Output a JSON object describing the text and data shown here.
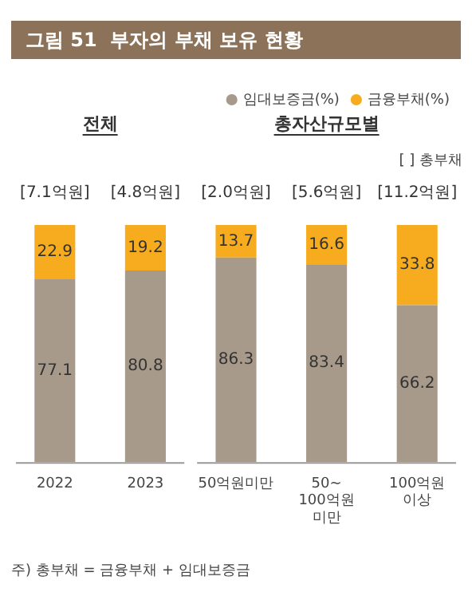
{
  "chart_data": {
    "type": "bar",
    "title": "그림 51  부자의 부채 보유 현황",
    "stacked": true,
    "data_labels": true,
    "legend": "top right",
    "grid": false,
    "categories": [
      "2022",
      "2023",
      "50억원미만",
      "50~100억원 미만",
      "100억원 이상"
    ],
    "series": [
      {
        "name": "임대보증금(%)",
        "color": "#a89a8a",
        "values": [
          77.1,
          80.8,
          86.3,
          83.4,
          66.2
        ]
      },
      {
        "name": "금융부채(%)",
        "color": "#f6ac1e",
        "values": [
          22.9,
          19.2,
          13.7,
          16.6,
          33.8
        ]
      }
    ],
    "annotations": [
      "전체",
      "총자산규모별",
      "[ ] 총부채",
      "주) 총부채 = 금융부채 + 임대보증금",
      {
        "text": "[7.1억원]",
        "x": "2022",
        "y": 100
      },
      {
        "text": "[4.8억원]",
        "x": "2023",
        "y": 100
      },
      {
        "text": "[2.0억원]",
        "x": "50억원미만",
        "y": 100
      },
      {
        "text": "[5.6억원]",
        "x": "50~100억원 미만",
        "y": 100
      },
      {
        "text": "[11.2억원]",
        "x": "100억원 이상",
        "y": 100
      }
    ]
  }
}
